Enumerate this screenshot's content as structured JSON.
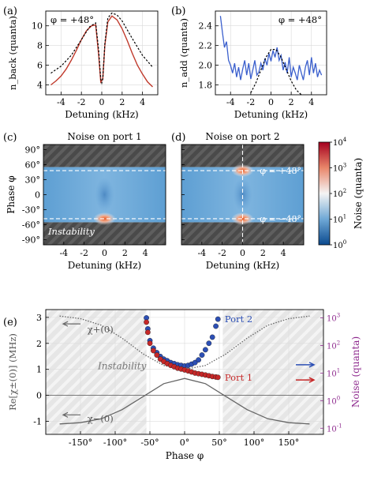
{
  "chart_data": [
    {
      "panel": "(a)",
      "type": "line",
      "annotation": "φ = +48°",
      "xlabel": "Detuning (kHz)",
      "ylabel": "n_back (quanta)",
      "xlim": [
        -5.5,
        5.5
      ],
      "ylim": [
        3,
        11.5
      ],
      "xticks": [
        -4,
        -2,
        0,
        2,
        4
      ],
      "yticks": [
        4,
        6,
        8,
        10
      ],
      "grid": true,
      "series": [
        {
          "kind": "measured",
          "color": "#c0392b",
          "x": [
            -5.0,
            -4.5,
            -4.0,
            -3.5,
            -3.0,
            -2.5,
            -2.0,
            -1.5,
            -1.0,
            -0.6,
            -0.3,
            -0.1,
            0.1,
            0.3,
            0.6,
            1.0,
            1.5,
            2.0,
            2.5,
            3.0,
            3.5,
            4.0,
            4.5,
            5.0
          ],
          "y": [
            4.0,
            4.4,
            4.9,
            5.6,
            6.5,
            7.5,
            8.6,
            9.5,
            10.0,
            10.1,
            7.0,
            4.3,
            4.6,
            8.0,
            10.4,
            11.0,
            10.6,
            9.7,
            8.5,
            7.2,
            6.0,
            5.1,
            4.3,
            3.8
          ]
        },
        {
          "kind": "theory",
          "style": "dashed",
          "color": "#000000",
          "x": [
            -5.0,
            -4.0,
            -3.0,
            -2.0,
            -1.2,
            -0.6,
            -0.3,
            -0.1,
            0.0,
            0.1,
            0.3,
            0.6,
            1.0,
            1.5,
            2.0,
            3.0,
            4.0,
            5.0
          ],
          "y": [
            5.2,
            5.9,
            7.0,
            8.6,
            9.9,
            10.3,
            7.5,
            4.6,
            4.2,
            4.6,
            8.2,
            10.8,
            11.3,
            11.1,
            10.5,
            8.7,
            7.0,
            5.8
          ]
        }
      ]
    },
    {
      "panel": "(b)",
      "type": "line",
      "annotation": "φ = +48°",
      "xlabel": "Detuning (kHz)",
      "ylabel": "n_add (quanta)",
      "xlim": [
        -5.5,
        5.5
      ],
      "ylim": [
        1.7,
        2.55
      ],
      "xticks": [
        -4,
        -2,
        0,
        2,
        4
      ],
      "yticks": [
        1.8,
        2.0,
        2.2,
        2.4
      ],
      "grid": true,
      "series": [
        {
          "kind": "measured",
          "color": "#3a5fcd",
          "x": [
            -5.0,
            -4.8,
            -4.6,
            -4.4,
            -4.2,
            -4.0,
            -3.8,
            -3.6,
            -3.4,
            -3.2,
            -3.0,
            -2.8,
            -2.6,
            -2.4,
            -2.2,
            -2.0,
            -1.8,
            -1.6,
            -1.4,
            -1.2,
            -1.0,
            -0.8,
            -0.6,
            -0.4,
            -0.2,
            0.0,
            0.2,
            0.4,
            0.6,
            0.8,
            1.0,
            1.2,
            1.4,
            1.6,
            1.8,
            2.0,
            2.2,
            2.4,
            2.6,
            2.8,
            3.0,
            3.2,
            3.4,
            3.6,
            3.8,
            4.0,
            4.2,
            4.4,
            4.6,
            4.8,
            5.0
          ],
          "y": [
            2.5,
            2.33,
            2.18,
            2.24,
            2.05,
            2.0,
            1.92,
            2.02,
            1.88,
            1.98,
            1.85,
            1.96,
            2.05,
            1.9,
            2.02,
            1.86,
            1.95,
            2.05,
            1.9,
            1.93,
            2.02,
            1.95,
            2.07,
            2.0,
            2.12,
            2.04,
            2.15,
            2.08,
            2.18,
            2.05,
            2.1,
            1.95,
            2.03,
            1.92,
            2.08,
            1.88,
            1.98,
            1.92,
            1.85,
            2.0,
            1.92,
            1.85,
            1.98,
            2.05,
            1.9,
            2.08,
            1.92,
            2.02,
            1.88,
            1.95,
            1.9
          ]
        },
        {
          "kind": "theory",
          "style": "dashed",
          "color": "#000000",
          "x": [
            -2.0,
            -1.5,
            -1.0,
            -0.5,
            0.0,
            0.5,
            1.0,
            1.5,
            2.0,
            2.5,
            3.0
          ],
          "y": [
            1.72,
            1.82,
            1.95,
            2.08,
            2.16,
            2.16,
            2.08,
            1.96,
            1.84,
            1.75,
            1.7
          ]
        }
      ]
    },
    {
      "panel": "(c)",
      "type": "heatmap",
      "title": "Noise on port 1",
      "xlabel": "Detuning (kHz)",
      "ylabel": "Phase φ",
      "xlim": [
        -6,
        6
      ],
      "ylim": [
        -100,
        100
      ],
      "xticks": [
        -4,
        -2,
        0,
        2,
        4
      ],
      "yticks": [
        "90°",
        "60°",
        "30°",
        "0",
        "-30°",
        "-60°",
        "-90°"
      ],
      "stable_range_deg": [
        -55,
        55
      ],
      "instability_label": "Instability",
      "hot_spots": [
        {
          "x": 0,
          "phi": -48,
          "level": "high"
        }
      ]
    },
    {
      "panel": "(d)",
      "type": "heatmap",
      "title": "Noise on port 2",
      "xlabel": "Detuning (kHz)",
      "xlim": [
        -6,
        6
      ],
      "ylim": [
        -100,
        100
      ],
      "xticks": [
        -4,
        -2,
        0,
        2,
        4
      ],
      "stable_range_deg": [
        -55,
        55
      ],
      "phase_cuts": [
        "φ = +48°",
        "φ = −48°"
      ],
      "hot_spots": [
        {
          "x": 0,
          "phi": 48,
          "level": "high"
        },
        {
          "x": 0,
          "phi": -48,
          "level": "high"
        }
      ]
    },
    {
      "panel": "colorbar",
      "label": "Noise (quanta)",
      "scale": "log",
      "range": [
        1,
        10000
      ],
      "ticks": [
        "10^0",
        "10^1",
        "10^2",
        "10^3",
        "10^4"
      ]
    },
    {
      "panel": "(e)",
      "type": "scatter",
      "xlabel": "Phase φ",
      "ylabel_left": "Re[χ±(0)] (MHz)",
      "ylabel_right": "Noise (quanta)",
      "xlim": [
        -200,
        200
      ],
      "ylim_left": [
        -1.5,
        3.3
      ],
      "ylim_right_log": [
        0.06,
        2000
      ],
      "xticks": [
        "-150°",
        "-100°",
        "-50°",
        "0°",
        "50°",
        "100°",
        "150°"
      ],
      "yticks_left": [
        -1,
        0,
        1,
        2,
        3
      ],
      "yticks_right": [
        "10^-1",
        "10^0",
        "10^1",
        "10^2",
        "10^3"
      ],
      "shaded_instability_deg": [
        [
          -200,
          -55
        ],
        [
          55,
          200
        ]
      ],
      "instability_label": "Instability",
      "curve_labels": [
        "χ+(0)",
        "χ−(0)"
      ],
      "series": [
        {
          "name": "Port 2",
          "color": "#2c4fb5",
          "phi": [
            -55,
            -53,
            -50,
            -45,
            -40,
            -35,
            -30,
            -25,
            -20,
            -15,
            -10,
            -5,
            0,
            5,
            10,
            15,
            20,
            25,
            30,
            35,
            40,
            45,
            48
          ],
          "noise": [
            1000,
            400,
            150,
            80,
            55,
            40,
            32,
            28,
            24,
            22,
            20,
            19,
            18,
            19,
            21,
            24,
            30,
            45,
            70,
            120,
            200,
            500,
            900
          ]
        },
        {
          "name": "Port 1",
          "color": "#c62828",
          "phi": [
            -55,
            -53,
            -50,
            -45,
            -40,
            -35,
            -30,
            -25,
            -20,
            -15,
            -10,
            -5,
            0,
            5,
            10,
            15,
            20,
            25,
            30,
            35,
            40,
            45,
            48
          ],
          "noise": [
            700,
            300,
            120,
            65,
            45,
            32,
            26,
            22,
            19,
            17,
            15,
            14,
            13,
            12,
            11,
            10,
            9.5,
            9,
            8.5,
            8,
            7.5,
            7.2,
            7
          ]
        }
      ],
      "curves": [
        {
          "name": "χ+(0)",
          "style": "dotted",
          "phi": [
            -180,
            -150,
            -120,
            -90,
            -60,
            -30,
            0,
            30,
            60,
            90,
            120,
            150,
            180
          ],
          "mhz": [
            3.05,
            2.95,
            2.7,
            2.2,
            1.6,
            1.15,
            1.0,
            1.15,
            1.6,
            2.2,
            2.7,
            2.95,
            3.05
          ]
        },
        {
          "name": "χ−(0)",
          "style": "solid",
          "phi": [
            -180,
            -150,
            -120,
            -90,
            -60,
            -30,
            0,
            30,
            60,
            90,
            120,
            150,
            180
          ],
          "mhz": [
            -1.1,
            -1.05,
            -0.9,
            -0.55,
            -0.05,
            0.45,
            0.65,
            0.45,
            -0.05,
            -0.55,
            -0.9,
            -1.05,
            -1.1
          ]
        }
      ]
    }
  ]
}
